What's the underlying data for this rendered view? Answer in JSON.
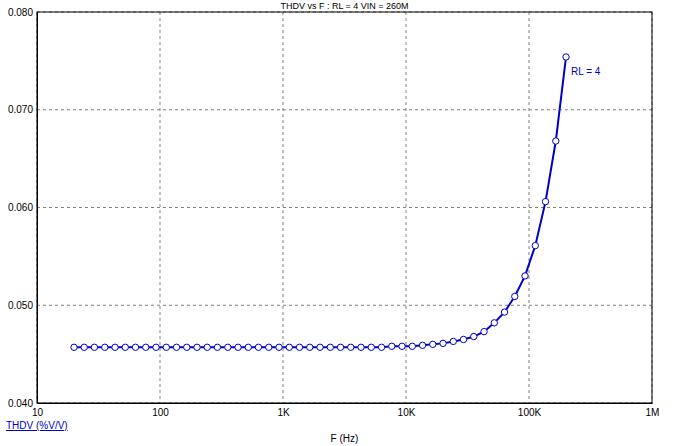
{
  "chart_data": {
    "type": "line",
    "title": "THDV vs F : RL = 4 VIN = 260M",
    "x_label": "F (Hz)",
    "y_label": "THDV (%V/V)",
    "log": "x",
    "grid": true,
    "xlim": [
      10,
      1000000
    ],
    "xticks": [
      10,
      100,
      {
        "value": 1000,
        "label": "1K"
      },
      {
        "value": 10000,
        "label": "10K"
      },
      {
        "value": 100000,
        "label": "100K"
      },
      {
        "value": 1000000,
        "label": "1M"
      }
    ],
    "ylim": [
      0.04,
      0.08
    ],
    "yticks": [
      {
        "value": 0.04,
        "label": "0.040"
      },
      {
        "value": 0.05,
        "label": "0.050"
      },
      {
        "value": 0.06,
        "label": "0.060"
      },
      {
        "value": 0.07,
        "label": "0.070"
      },
      {
        "value": 0.08,
        "label": "0.080"
      }
    ],
    "x": [
      20,
      24.2,
      29.3,
      35.6,
      43.1,
      52.2,
      63.2,
      76.6,
      92.8,
      112.5,
      136.3,
      165.1,
      200,
      242,
      293,
      356,
      431,
      522,
      632,
      766,
      928,
      1125,
      1363,
      1651,
      2000,
      2423,
      2935,
      3557,
      4309,
      5221,
      6325,
      7663,
      9283,
      11247,
      13627,
      16509,
      20000,
      24230,
      29350,
      35570,
      43090,
      52210,
      63250,
      76630,
      92830,
      112470,
      136270,
      165090,
      200000
    ],
    "series": [
      {
        "name": "RL = 4",
        "color": "#0000c8",
        "marker": "circle",
        "line_style": "solid",
        "values": [
          0.0457,
          0.0457,
          0.0457,
          0.0457,
          0.0457,
          0.0457,
          0.0457,
          0.0457,
          0.0457,
          0.0457,
          0.0457,
          0.0457,
          0.0457,
          0.0457,
          0.0457,
          0.0457,
          0.0457,
          0.0457,
          0.0457,
          0.0457,
          0.0457,
          0.0457,
          0.0457,
          0.0457,
          0.0457,
          0.0457,
          0.0457,
          0.0457,
          0.0457,
          0.0457,
          0.0457,
          0.0458,
          0.0458,
          0.0458,
          0.0459,
          0.046,
          0.0461,
          0.0463,
          0.0465,
          0.0468,
          0.0473,
          0.0482,
          0.0493,
          0.0509,
          0.053,
          0.0561,
          0.0606,
          0.0668,
          0.0754
        ]
      }
    ]
  }
}
